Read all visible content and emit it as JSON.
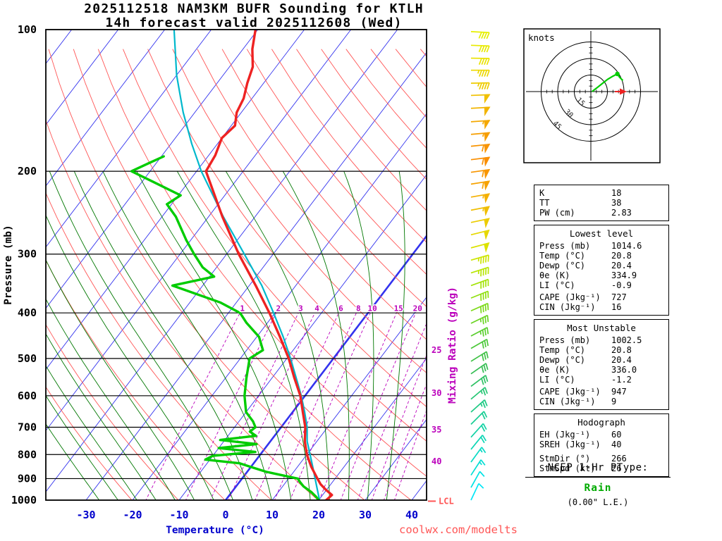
{
  "title": {
    "line1": "2025112518 NAM3KM BUFR Sounding for KTLH",
    "line2": "14h forecast valid 2025112608 (Wed)"
  },
  "watermark": "coolwx.com/modelts",
  "axes": {
    "pressure_label": "Pressure (mb)",
    "temperature_label": "Temperature (°C)",
    "mixing_ratio_label": "Mixing Ratio (g/kg)",
    "pressure_ticks": [
      100,
      200,
      300,
      400,
      500,
      600,
      700,
      800,
      900,
      1000
    ],
    "temperature_ticks": [
      -30,
      -20,
      -10,
      0,
      10,
      20,
      30,
      40
    ]
  },
  "lcl": {
    "label": "LCL",
    "pressure": 1005
  },
  "hodograph": {
    "units_label": "knots",
    "rings_kt": [
      15,
      30,
      45
    ],
    "trace_kt": [
      [
        1,
        0
      ],
      [
        5,
        3
      ],
      [
        10,
        7
      ],
      [
        15,
        11
      ],
      [
        20,
        14
      ],
      [
        24,
        16
      ],
      [
        26,
        13
      ],
      [
        29,
        10
      ]
    ],
    "trace_dot_kt": [
      24,
      16
    ],
    "storm_motion_kt": [
      30,
      0
    ]
  },
  "stats": {
    "indices": {
      "rows": [
        {
          "label": "K",
          "value": "18"
        },
        {
          "label": "TT",
          "value": "38"
        },
        {
          "label": "PW (cm)",
          "value": "2.83"
        }
      ]
    },
    "lowest": {
      "title": "Lowest level",
      "rows": [
        {
          "label": "Press (mb)",
          "value": "1014.6"
        },
        {
          "label": "Temp (°C)",
          "value": "20.8"
        },
        {
          "label": "Dewp (°C)",
          "value": "20.4"
        },
        {
          "label": "θe (K)",
          "value": "334.9"
        },
        {
          "label": "LI (°C)",
          "value": "-0.9"
        },
        {
          "label": "CAPE (Jkg⁻¹)",
          "value": "727"
        },
        {
          "label": "CIN (Jkg⁻¹)",
          "value": "16"
        }
      ]
    },
    "most_unstable": {
      "title": "Most Unstable",
      "rows": [
        {
          "label": "Press (mb)",
          "value": "1002.5"
        },
        {
          "label": "Temp (°C)",
          "value": "20.8"
        },
        {
          "label": "Dewp (°C)",
          "value": "20.4"
        },
        {
          "label": "θe (K)",
          "value": "336.0"
        },
        {
          "label": "LI (°C)",
          "value": "-1.2"
        },
        {
          "label": "CAPE (Jkg⁻¹)",
          "value": "947"
        },
        {
          "label": "CIN (Jkg⁻¹)",
          "value": "9"
        }
      ]
    },
    "hodo": {
      "title": "Hodograph",
      "rows": [
        {
          "label": "EH (Jkg⁻¹)",
          "value": "60"
        },
        {
          "label": "SREH (Jkg⁻¹)",
          "value": "40"
        },
        {
          "label": "StmDir (°)",
          "value": "266"
        },
        {
          "label": "StmSpd (kt)",
          "value": "26"
        }
      ]
    }
  },
  "ptype": {
    "heading": "NCEP 1-Hr PType:",
    "value": "Rain",
    "detail": "(0.00\" L.E.)"
  },
  "colors": {
    "temperature": "#ee2222",
    "dewpoint": "#00cc00",
    "parcel": "#00b8cc",
    "isotherm": "#3333ee",
    "dry_adiabat": "#ff5555",
    "moist_adiabat": "#007700",
    "mixing_ratio": "#bb00bb",
    "pressure_line": "#000000",
    "temp_axis": "#0000cc",
    "rain": "#00aa00",
    "watermark": "#ff5555",
    "lcl": "#ff5555"
  },
  "chart_data": {
    "type": "skewt_sounding",
    "station": "KTLH",
    "model_run": "2025112518 NAM3KM BUFR",
    "valid": "2025112608 (Wed)",
    "pressure_range_mb": [
      100,
      1050
    ],
    "temperature_axis_c": [
      -30,
      40
    ],
    "temperature_profile_c": [
      [
        1014.6,
        20.8
      ],
      [
        1000,
        21.6
      ],
      [
        975,
        22.0
      ],
      [
        950,
        19.8
      ],
      [
        925,
        17.8
      ],
      [
        900,
        16.2
      ],
      [
        850,
        13.0
      ],
      [
        800,
        10.0
      ],
      [
        750,
        7.4
      ],
      [
        700,
        5.2
      ],
      [
        650,
        2.2
      ],
      [
        600,
        -1.0
      ],
      [
        550,
        -5.2
      ],
      [
        500,
        -9.6
      ],
      [
        450,
        -15.0
      ],
      [
        400,
        -21.2
      ],
      [
        350,
        -28.6
      ],
      [
        300,
        -37.4
      ],
      [
        250,
        -47.0
      ],
      [
        200,
        -58.0
      ],
      [
        185,
        -58.6
      ],
      [
        170,
        -60.0
      ],
      [
        160,
        -59.2
      ],
      [
        150,
        -61.0
      ],
      [
        140,
        -61.8
      ],
      [
        130,
        -63.5
      ],
      [
        120,
        -65.0
      ],
      [
        110,
        -68.0
      ],
      [
        100,
        -70.5
      ]
    ],
    "dewpoint_profile_c": [
      [
        1014.6,
        20.4
      ],
      [
        1000,
        20.0
      ],
      [
        985,
        19.0
      ],
      [
        960,
        17.0
      ],
      [
        935,
        14.5
      ],
      [
        915,
        13.0
      ],
      [
        900,
        12.0
      ],
      [
        885,
        8.0
      ],
      [
        870,
        4.0
      ],
      [
        850,
        0.0
      ],
      [
        835,
        -3.0
      ],
      [
        820,
        -11.0
      ],
      [
        805,
        -10.0
      ],
      [
        790,
        -1.5
      ],
      [
        775,
        -10.0
      ],
      [
        760,
        -2.5
      ],
      [
        745,
        -11.0
      ],
      [
        730,
        -4.0
      ],
      [
        715,
        -6.0
      ],
      [
        700,
        -5.5
      ],
      [
        680,
        -7.0
      ],
      [
        650,
        -10.0
      ],
      [
        600,
        -13.0
      ],
      [
        550,
        -15.5
      ],
      [
        500,
        -18.0
      ],
      [
        480,
        -16.5
      ],
      [
        450,
        -19.5
      ],
      [
        420,
        -24.5
      ],
      [
        400,
        -27.5
      ],
      [
        380,
        -33.5
      ],
      [
        350,
        -46.5
      ],
      [
        335,
        -39.0
      ],
      [
        320,
        -43.0
      ],
      [
        300,
        -47.0
      ],
      [
        280,
        -51.0
      ],
      [
        250,
        -57.0
      ],
      [
        235,
        -61.0
      ],
      [
        225,
        -59.5
      ],
      [
        210,
        -68.0
      ],
      [
        200,
        -74.0
      ],
      [
        192,
        -71.5
      ],
      [
        186,
        -69.5
      ]
    ],
    "parcel_profile_c": [
      [
        1014.6,
        20.8
      ],
      [
        1005,
        20.4
      ],
      [
        950,
        18.0
      ],
      [
        900,
        15.7
      ],
      [
        850,
        13.3
      ],
      [
        800,
        10.7
      ],
      [
        750,
        7.9
      ],
      [
        700,
        5.6
      ],
      [
        650,
        2.6
      ],
      [
        600,
        -0.8
      ],
      [
        550,
        -4.8
      ],
      [
        500,
        -9.2
      ],
      [
        450,
        -14.3
      ],
      [
        400,
        -20.3
      ],
      [
        350,
        -27.3
      ],
      [
        300,
        -36.2
      ],
      [
        250,
        -46.8
      ],
      [
        200,
        -59.0
      ],
      [
        175,
        -65.5
      ],
      [
        150,
        -72.5
      ],
      [
        125,
        -80.0
      ],
      [
        100,
        -88.0
      ]
    ],
    "mixing_ratio_lines_gkg": [
      1,
      2,
      3,
      4,
      6,
      8,
      10,
      15,
      20,
      25,
      30,
      35,
      40
    ],
    "mixing_ratio_inline_labels": [
      1,
      2,
      3,
      4,
      6,
      8,
      10,
      15,
      20
    ],
    "mixing_ratio_right_labels": [
      {
        "value": 25,
        "pressure": 480
      },
      {
        "value": 30,
        "pressure": 592
      },
      {
        "value": 35,
        "pressure": 708
      },
      {
        "value": 40,
        "pressure": 828
      }
    ],
    "wind_barbs": [
      [
        1000,
        205,
        10,
        "#00e6f6"
      ],
      [
        940,
        209,
        14,
        "#00e2e4"
      ],
      [
        885,
        213,
        16,
        "#04ded4"
      ],
      [
        830,
        216,
        18,
        "#08dac4"
      ],
      [
        780,
        219,
        20,
        "#0cd6b4"
      ],
      [
        735,
        222,
        22,
        "#12d2a4"
      ],
      [
        690,
        225,
        24,
        "#18ce94"
      ],
      [
        650,
        228,
        26,
        "#1eca84"
      ],
      [
        610,
        230,
        28,
        "#26c674"
      ],
      [
        573,
        233,
        30,
        "#2ec264"
      ],
      [
        539,
        235,
        30,
        "#36be54"
      ],
      [
        507,
        238,
        32,
        "#40c246"
      ],
      [
        476,
        240,
        34,
        "#4cc83a"
      ],
      [
        448,
        242,
        36,
        "#5ace2e"
      ],
      [
        421,
        244,
        38,
        "#6ad422"
      ],
      [
        396,
        246,
        40,
        "#7cda18"
      ],
      [
        372,
        248,
        42,
        "#90e010"
      ],
      [
        350,
        250,
        44,
        "#a4e408"
      ],
      [
        329,
        252,
        46,
        "#b8e604"
      ],
      [
        309,
        254,
        48,
        "#cce600"
      ],
      [
        291,
        255,
        50,
        "#dce200"
      ],
      [
        273,
        256,
        52,
        "#e6d800"
      ],
      [
        257,
        258,
        54,
        "#eccc00"
      ],
      [
        242,
        259,
        56,
        "#f0be00"
      ],
      [
        227,
        260,
        58,
        "#f4b000"
      ],
      [
        213,
        261,
        60,
        "#f6a200"
      ],
      [
        201,
        262,
        62,
        "#f89600"
      ],
      [
        189,
        263,
        62,
        "#fa8e00"
      ],
      [
        177,
        264,
        60,
        "#f89400"
      ],
      [
        167,
        265,
        58,
        "#f69e00"
      ],
      [
        157,
        266,
        55,
        "#f4a800"
      ],
      [
        147,
        267,
        52,
        "#f2b400"
      ],
      [
        138,
        268,
        50,
        "#f0c000"
      ],
      [
        130,
        269,
        48,
        "#eecc00"
      ],
      [
        122,
        270,
        46,
        "#ecd800"
      ],
      [
        115,
        271,
        44,
        "#eae200"
      ],
      [
        108,
        272,
        42,
        "#e8ea00"
      ],
      [
        101,
        273,
        40,
        "#e6f000"
      ]
    ]
  }
}
